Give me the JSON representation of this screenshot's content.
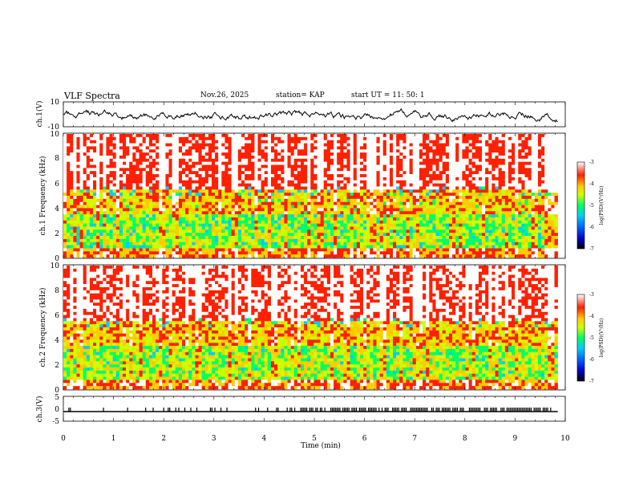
{
  "header": {
    "title": "VLF Spectra",
    "date": "Nov.26, 2025",
    "station": "station= KAP",
    "start": "start  UT =   11: 50: 1"
  },
  "chart_data": [
    {
      "type": "line",
      "panel": "ch1-waveform",
      "ylabel": "ch.1(V)",
      "ylim": [
        -10,
        10
      ],
      "yticks": [
        "10",
        "-10"
      ],
      "xlim": [
        0,
        10
      ],
      "series": [
        {
          "name": "ch.1",
          "description_range": [
            -6,
            4
          ]
        }
      ],
      "data_end_min": 9.85
    },
    {
      "type": "heatmap",
      "panel": "ch1-spectrogram",
      "ylabel": "ch.1 Frequency (kHz)",
      "ylim": [
        0,
        10
      ],
      "yticks": [
        "0",
        "2",
        "4",
        "6",
        "8",
        "10"
      ],
      "xlim": [
        0,
        10
      ],
      "colorbar": {
        "label": "log(PSD)(V²/Hz)",
        "range": [
          -7,
          -3
        ],
        "ticks": [
          "-3",
          "-4",
          "-5",
          "-6",
          "-7"
        ]
      }
    },
    {
      "type": "heatmap",
      "panel": "ch2-spectrogram",
      "ylabel": "ch.2 Frequency (kHz)",
      "ylim": [
        0,
        10
      ],
      "yticks": [
        "0",
        "2",
        "4",
        "6",
        "8",
        "10"
      ],
      "xlim": [
        0,
        10
      ],
      "colorbar": {
        "label": "log(PSD)(V²/Hz)",
        "range": [
          -7,
          -3
        ],
        "ticks": [
          "-3",
          "-4",
          "-5",
          "-6",
          "-7"
        ]
      }
    },
    {
      "type": "line",
      "panel": "ch3-waveform",
      "ylabel": "ch.3(V)",
      "ylim": [
        -5,
        5
      ],
      "yticks": [
        "5",
        "0",
        "-5"
      ],
      "xlim": [
        0,
        10
      ],
      "series": [
        {
          "name": "ch.3",
          "description_range": [
            -1,
            0
          ]
        }
      ]
    }
  ],
  "xaxis": {
    "label": "Time  (min)",
    "ticks": [
      "0",
      "1",
      "2",
      "3",
      "4",
      "5",
      "6",
      "7",
      "8",
      "9",
      "10"
    ]
  },
  "colormap": [
    "#000000",
    "#0000cc",
    "#0066ff",
    "#00ccff",
    "#00ff66",
    "#ccff00",
    "#ffcc00",
    "#ff2000",
    "#ffffff"
  ]
}
